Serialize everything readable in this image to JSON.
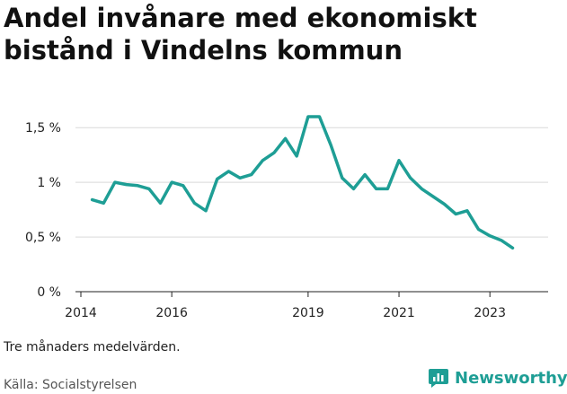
{
  "header": {
    "title_line1": "Andel invånare med ekonomiskt",
    "title_line2": "bistånd i Vindelns kommun"
  },
  "footer": {
    "note": "Tre månaders medelvärden.",
    "source": "Källa: Socialstyrelsen",
    "brand": "Newsworthy",
    "brand_icon": "newsworthy-logo-icon"
  },
  "colors": {
    "line": "#1e9e95",
    "grid": "#d9d9d9",
    "brand": "#1e9e95"
  },
  "chart_data": {
    "type": "line",
    "title": "Andel invånare med ekonomiskt bistånd i Vindelns kommun",
    "xlabel": "",
    "ylabel": "",
    "grid": true,
    "xlim": [
      2014,
      2024.4
    ],
    "ylim": [
      0,
      1.6
    ],
    "x_ticks": [
      {
        "value": 2014,
        "label": "2014"
      },
      {
        "value": 2016,
        "label": "2016"
      },
      {
        "value": 2019,
        "label": "2019"
      },
      {
        "value": 2021,
        "label": "2021"
      },
      {
        "value": 2023,
        "label": "2023"
      }
    ],
    "y_ticks": [
      {
        "value": 0,
        "label": "0 %"
      },
      {
        "value": 0.5,
        "label": "0,5 %"
      },
      {
        "value": 1,
        "label": "1 %"
      },
      {
        "value": 1.5,
        "label": "1,5 %"
      }
    ],
    "series": [
      {
        "x": [
          2014.25,
          2014.5,
          2014.75,
          2015.0,
          2015.25,
          2015.5,
          2015.75,
          2016.0,
          2016.25,
          2016.5,
          2016.75,
          2017.0,
          2017.25,
          2017.5,
          2017.75,
          2018.0,
          2018.25,
          2018.5,
          2018.75,
          2019.0,
          2019.25,
          2019.5,
          2019.75,
          2020.0,
          2020.25,
          2020.5,
          2020.75,
          2021.0,
          2021.25,
          2021.5,
          2021.75,
          2022.0,
          2022.25,
          2022.5,
          2022.75,
          2023.0,
          2023.25,
          2023.5
        ],
        "values": [
          0.84,
          0.81,
          1.0,
          0.98,
          0.97,
          0.94,
          0.81,
          1.0,
          0.97,
          0.81,
          0.74,
          1.03,
          1.1,
          1.04,
          1.07,
          1.2,
          1.27,
          1.4,
          1.24,
          1.6,
          1.6,
          1.34,
          1.04,
          0.94,
          1.07,
          0.94,
          0.94,
          1.2,
          1.04,
          0.94,
          0.87,
          0.8,
          0.71,
          0.74,
          0.57,
          0.51,
          0.47,
          0.4
        ]
      }
    ]
  }
}
